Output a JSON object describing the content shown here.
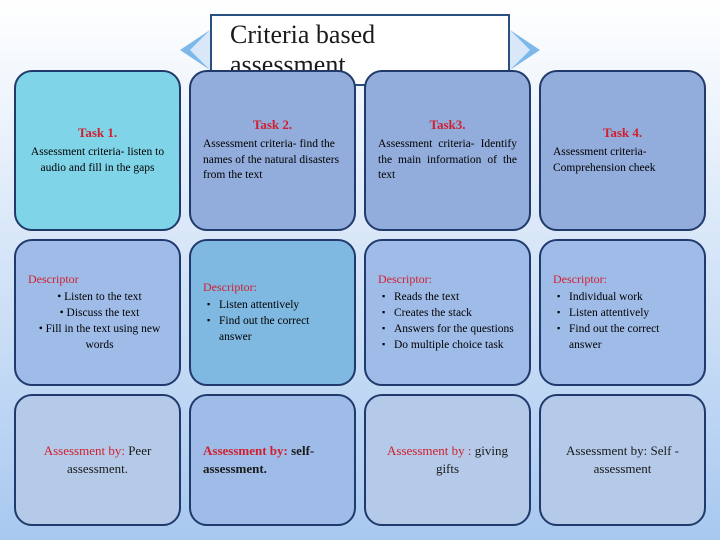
{
  "title": "Criteria based assessment",
  "colors": {
    "ribbon_border": "#2a5080",
    "ribbon_bg": "#ffffff",
    "card_border": "#1f3a6b",
    "red": "#d02030",
    "dark_red": "#a01820",
    "black": "#1a1a1a",
    "blue_text": "#2a5080"
  },
  "cards": {
    "r1c1": {
      "bg": "#7fd4e8",
      "title": "Task 1.",
      "title_color": "#d02030",
      "text": "Assessment criteria- listen to audio and fill in the gaps",
      "text_align": "center"
    },
    "r1c2": {
      "bg": "#92acdb",
      "title": "Task 2.",
      "title_color": "#d02030",
      "text": "Assessment criteria- find the names of the natural disasters from the text",
      "text_align": "left"
    },
    "r1c3": {
      "bg": "#92acdb",
      "title": "Task3.",
      "title_color": "#d02030",
      "text": "Assessment criteria- Identify the main information of the text",
      "text_align": "justify"
    },
    "r1c4": {
      "bg": "#92acdb",
      "title": "Task 4.",
      "title_color": "#d02030",
      "text": "Assessment criteria- Comprehension cheek",
      "text_align": "left"
    },
    "r2c1": {
      "bg": "#9fbce8",
      "desc_label": "Descriptor",
      "desc_color": "#d02030",
      "items": [
        "Listen to the text",
        "Discuss the text",
        "Fill in the text using new words"
      ],
      "centered": true
    },
    "r2c2": {
      "bg": "#7fb8e0",
      "desc_label": "Descriptor:",
      "desc_color": "#d02030",
      "items": [
        "Listen attentively",
        "Find out the correct answer"
      ],
      "bullet": "sq"
    },
    "r2c3": {
      "bg": "#9fbce8",
      "desc_label": "Descriptor:",
      "desc_color": "#d02030",
      "items": [
        "Reads the text",
        "Creates the stack",
        "Answers for the questions",
        "Do multiple choice task"
      ],
      "bullet": "sq"
    },
    "r2c4": {
      "bg": "#9fbce8",
      "desc_label": "Descriptor:",
      "desc_color": "#d02030",
      "items": [
        "Individual work",
        "Listen attentively",
        "Find out the correct answer"
      ],
      "bullet": "sq"
    },
    "r3c1": {
      "bg": "#b5cae8",
      "label": "Assessment by:",
      "label_color": "#d02030",
      "value": "Peer assessment.",
      "value_color": "#1a1a1a",
      "bold": false
    },
    "r3c2": {
      "bg": "#9fbce8",
      "label": "Assessment by:",
      "label_color": "#d02030",
      "value": "self- assessment.",
      "value_color": "#1a1a1a",
      "bold": true
    },
    "r3c3": {
      "bg": "#b5cae8",
      "label": "Assessment by :",
      "label_color": "#d02030",
      "value": "giving gifts",
      "value_color": "#1a1a1a",
      "bold": false
    },
    "r3c4": {
      "bg": "#b5cae8",
      "label": "Assessment by:",
      "label_color": "#1a1a1a",
      "value": "Self - assessment",
      "value_color": "#1a1a1a",
      "bold": false
    }
  }
}
